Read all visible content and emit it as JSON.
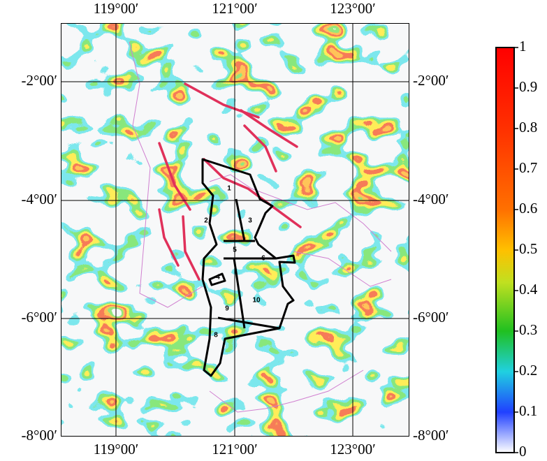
{
  "map": {
    "top_lon_labels": [
      "119°00′",
      "121°00′",
      "123°00′"
    ],
    "bottom_lon_labels": [
      "119°00′",
      "121°00′",
      "123°00′"
    ],
    "left_lat_labels": [
      "-2°00′",
      "-4°00′",
      "-6°00′",
      "-8°00′"
    ],
    "right_lat_labels": [
      "-2°00′",
      "-4°00′",
      "-6°00′",
      "-8°00′"
    ],
    "regions": [
      "1",
      "2",
      "3",
      "4",
      "5",
      "6",
      "8",
      "9",
      "10"
    ]
  },
  "colorbar": {
    "lim": [
      0,
      1
    ],
    "ticks": [
      0,
      0.1,
      0.2,
      0.3,
      0.4,
      0.5,
      0.6,
      0.7,
      0.8,
      0.9,
      1
    ]
  }
}
